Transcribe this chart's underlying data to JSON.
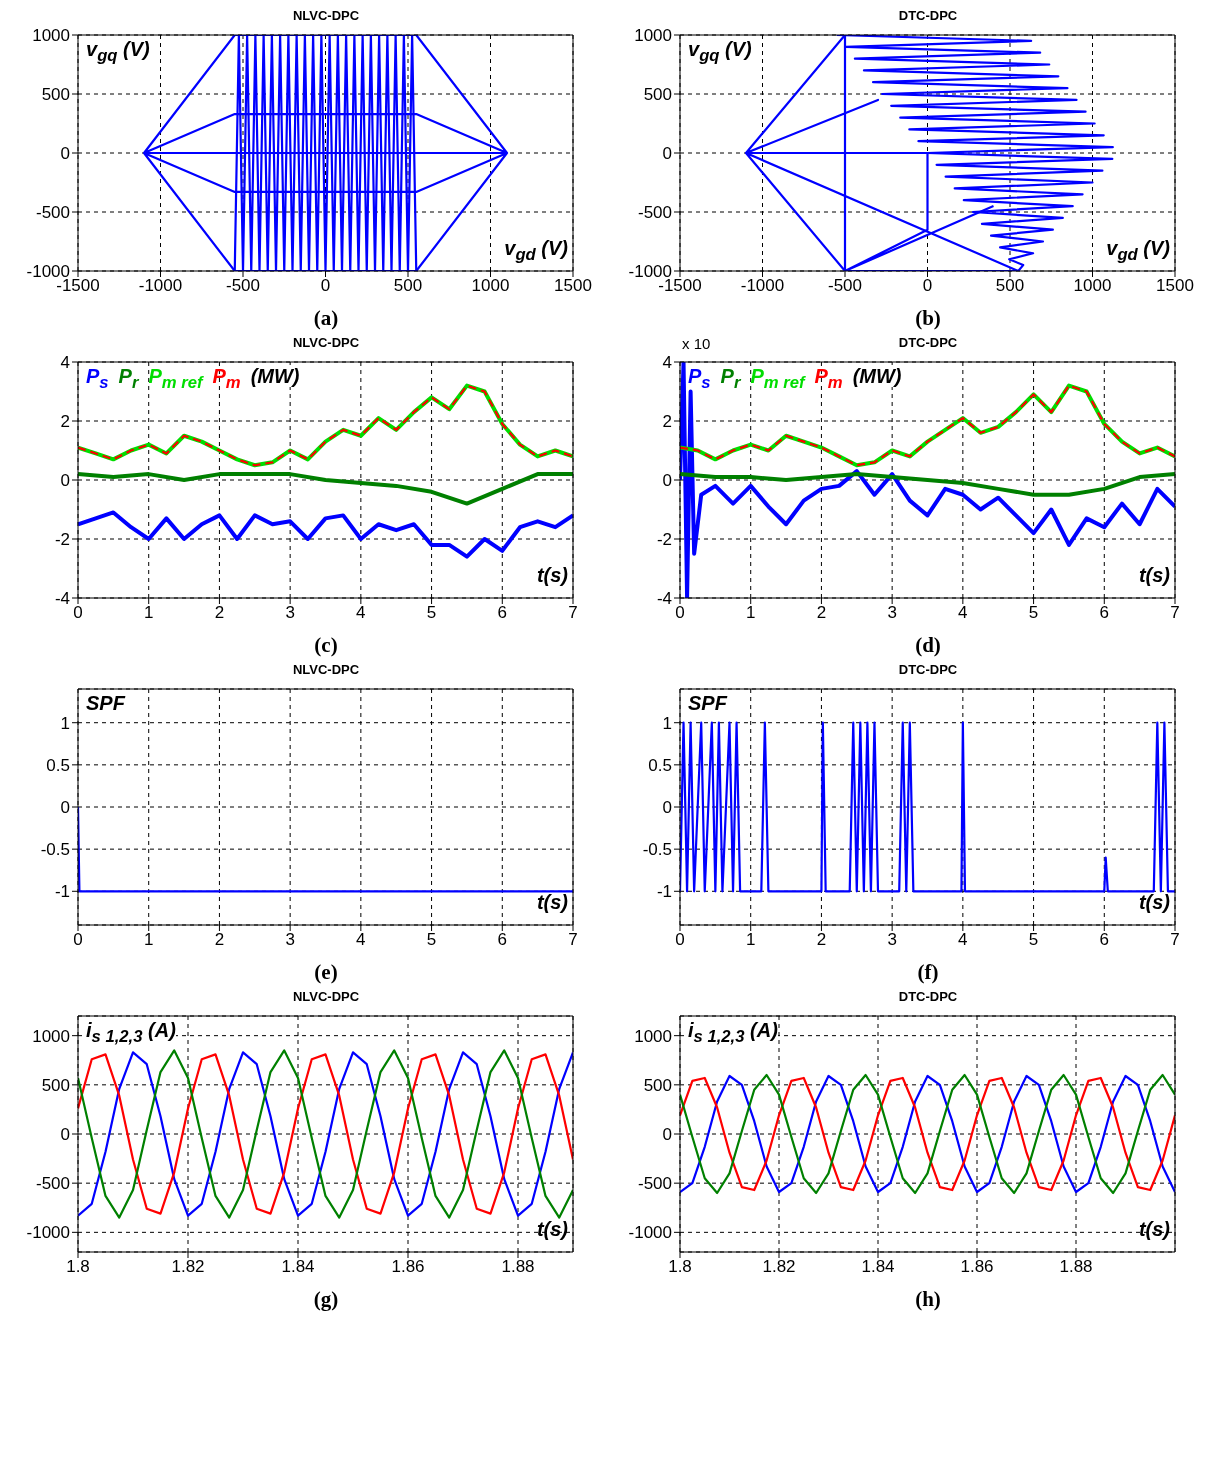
{
  "chart_data": [
    {
      "type": "line",
      "title": "NLVC-DPC",
      "xlabel": "v$_{gd}$ (V)",
      "ylabel": "v$_{gq}$ (V)",
      "annotations": [
        "(a)"
      ],
      "xlim": [
        -1500,
        1500
      ],
      "xticks": [
        -1500,
        -1000,
        -500,
        0,
        500,
        1000,
        1500
      ],
      "ylim": [
        -1000,
        1000
      ],
      "yticks": [
        -1000,
        -500,
        0,
        500,
        1000
      ],
      "grid": true,
      "marker": "none",
      "series": [
        {
          "color": "#0000ff",
          "x": [
            -1100,
            -550,
            550,
            1100,
            550,
            -550,
            -1100,
            -550,
            550,
            1100,
            550,
            -550,
            -1100,
            -550,
            550,
            1100
          ],
          "values": [
            0,
            1000,
            1000,
            0,
            -1000,
            -1000,
            0,
            330,
            330,
            0,
            -330,
            -330,
            0,
            0,
            0,
            0
          ]
        },
        {
          "color": "#0000ff",
          "x": [
            -550,
            -525,
            -500,
            -475,
            -450,
            -425,
            -400,
            -375,
            -350,
            -325,
            -300,
            -275,
            -250,
            -225,
            -200,
            -175,
            -150,
            -125,
            -100,
            -75,
            -50,
            -25,
            0,
            25,
            50,
            75,
            100,
            125,
            150,
            175,
            200,
            225,
            250,
            275,
            300,
            325,
            350,
            375,
            400,
            425,
            450,
            475,
            500,
            525,
            550
          ],
          "values": [
            -1000,
            1000,
            -1000,
            1000,
            -1000,
            1000,
            -1000,
            1000,
            -1000,
            1000,
            -1000,
            1000,
            -1000,
            1000,
            -1000,
            1000,
            -1000,
            1000,
            -1000,
            1000,
            -1000,
            1000,
            -1000,
            1000,
            -1000,
            1000,
            -1000,
            1000,
            -1000,
            1000,
            -1000,
            1000,
            -1000,
            1000,
            -1000,
            1000,
            -1000,
            1000,
            -1000,
            1000,
            -1000,
            1000,
            -1000,
            1000,
            -1000
          ]
        }
      ]
    },
    {
      "type": "line",
      "title": "DTC-DPC",
      "xlabel": "v$_{gd}$ (V)",
      "ylabel": "v$_{gq}$ (V)",
      "annotations": [
        "(b)"
      ],
      "xlim": [
        -1500,
        1500
      ],
      "xticks": [
        -1500,
        -1000,
        -500,
        0,
        500,
        1000,
        1500
      ],
      "ylim": [
        -1000,
        1000
      ],
      "yticks": [
        -1000,
        -500,
        0,
        500,
        1000
      ],
      "grid": true,
      "marker": "none",
      "series": [
        {
          "color": "#0000ff",
          "x": [
            -1100,
            -500,
            -500,
            -1100,
            0,
            0,
            -500,
            550,
            -1100,
            -300,
            -1100,
            -500,
            400
          ],
          "values": [
            0,
            1000,
            -1000,
            0,
            0,
            -650,
            -1000,
            -1000,
            0,
            450,
            0,
            -1000,
            -450
          ]
        },
        {
          "color": "#0000ff",
          "x": [
            -550,
            628,
            -495,
            683,
            -440,
            738,
            -385,
            793,
            -330,
            848,
            -275,
            903,
            -220,
            958,
            -165,
            1013,
            -110,
            1068,
            -55,
            1123,
            0,
            1120,
            55,
            1060,
            110,
            1000,
            165,
            940,
            220,
            880,
            275,
            820,
            330,
            760,
            385,
            700,
            440,
            640,
            495,
            580,
            550
          ],
          "values": [
            1000,
            950,
            900,
            850,
            800,
            750,
            700,
            650,
            600,
            550,
            500,
            450,
            400,
            350,
            300,
            250,
            200,
            150,
            100,
            50,
            0,
            -50,
            -100,
            -150,
            -200,
            -250,
            -300,
            -350,
            -400,
            -450,
            -500,
            -550,
            -600,
            -650,
            -700,
            -750,
            -800,
            -850,
            -900,
            -950,
            -1000
          ]
        }
      ]
    },
    {
      "type": "line",
      "title": "NLVC-DPC",
      "xlabel": "t(s)",
      "ylabel": "(MW)",
      "annotations": [
        "(c)"
      ],
      "xlim": [
        0,
        7
      ],
      "xticks": [
        0,
        1,
        2,
        3,
        4,
        5,
        6,
        7
      ],
      "ylim": [
        -4,
        4
      ],
      "yticks": [
        -4,
        -2,
        0,
        2,
        4
      ],
      "grid": true,
      "marker": "none",
      "x": [
        0,
        0.25,
        0.5,
        0.75,
        1,
        1.25,
        1.5,
        1.75,
        2,
        2.25,
        2.5,
        2.75,
        3,
        3.25,
        3.5,
        3.75,
        4,
        4.25,
        4.5,
        4.75,
        5,
        5.25,
        5.5,
        5.75,
        6,
        6.25,
        6.5,
        6.75,
        7
      ],
      "series": [
        {
          "name": "P$_{s}$",
          "color": "#0000ff",
          "values": [
            -1.5,
            -1.3,
            -1.1,
            -1.6,
            -2.0,
            -1.3,
            -2.0,
            -1.5,
            -1.2,
            -2.0,
            -1.2,
            -1.5,
            -1.4,
            -2.0,
            -1.3,
            -1.2,
            -2.0,
            -1.5,
            -1.7,
            -1.5,
            -2.2,
            -2.2,
            -2.6,
            -2.0,
            -2.4,
            -1.6,
            -1.4,
            -1.6,
            -1.2
          ]
        },
        {
          "name": "P$_{r}$",
          "color": "#008000",
          "x": [
            0,
            0.5,
            1,
            1.5,
            2,
            2.5,
            3,
            3.5,
            4,
            4.5,
            5,
            5.5,
            6,
            6.5,
            7
          ],
          "values": [
            0.2,
            0.1,
            0.2,
            0.0,
            0.2,
            0.2,
            0.2,
            0.0,
            -0.1,
            -0.2,
            -0.4,
            -0.8,
            -0.3,
            0.2,
            0.2
          ]
        },
        {
          "name": "P$_{m ref}$",
          "color": "#00dd00",
          "values": [
            1.1,
            0.9,
            0.7,
            1.0,
            1.2,
            0.9,
            1.5,
            1.3,
            1.0,
            0.7,
            0.5,
            0.6,
            1.0,
            0.7,
            1.3,
            1.7,
            1.5,
            2.1,
            1.7,
            2.3,
            2.8,
            2.4,
            3.2,
            3.0,
            1.9,
            1.2,
            0.8,
            1.0,
            0.8
          ]
        },
        {
          "name": "P$_{m}$",
          "color": "#ff0000",
          "line_style": "dashed",
          "values": [
            1.1,
            0.9,
            0.7,
            1.0,
            1.2,
            0.9,
            1.5,
            1.3,
            1.0,
            0.7,
            0.5,
            0.6,
            1.0,
            0.7,
            1.3,
            1.7,
            1.5,
            2.1,
            1.7,
            2.3,
            2.8,
            2.4,
            3.2,
            3.0,
            1.9,
            1.2,
            0.8,
            1.0,
            0.8
          ]
        }
      ]
    },
    {
      "type": "line",
      "title": "DTC-DPC",
      "xlabel": "t(s)",
      "ylabel": "(MW)",
      "annotations": [
        "x 10",
        "(d)"
      ],
      "xlim": [
        0,
        7
      ],
      "xticks": [
        0,
        1,
        2,
        3,
        4,
        5,
        6,
        7
      ],
      "ylim": [
        -4,
        4
      ],
      "yticks": [
        -4,
        -2,
        0,
        2,
        4
      ],
      "grid": true,
      "marker": "none",
      "x": [
        0,
        0.25,
        0.5,
        0.75,
        1,
        1.25,
        1.5,
        1.75,
        2,
        2.25,
        2.5,
        2.75,
        3,
        3.25,
        3.5,
        3.75,
        4,
        4.25,
        4.5,
        4.75,
        5,
        5.25,
        5.5,
        5.75,
        6,
        6.25,
        6.5,
        6.75,
        7
      ],
      "series": [
        {
          "name": "P$_{s}$",
          "color": "#0000ff",
          "x": [
            0,
            0.05,
            0.1,
            0.15,
            0.2,
            0.3,
            0.5,
            0.75,
            1,
            1.25,
            1.5,
            1.75,
            2,
            2.25,
            2.5,
            2.75,
            3,
            3.25,
            3.5,
            3.75,
            4,
            4.25,
            4.5,
            4.75,
            5,
            5.25,
            5.5,
            5.75,
            6,
            6.25,
            6.5,
            6.75,
            7
          ],
          "values": [
            0,
            4,
            -4,
            3,
            -2.5,
            -0.5,
            -0.2,
            -0.8,
            -0.2,
            -0.9,
            -1.5,
            -0.7,
            -0.3,
            -0.2,
            0.3,
            -0.5,
            0.2,
            -0.7,
            -1.2,
            -0.3,
            -0.5,
            -1.0,
            -0.6,
            -1.2,
            -1.8,
            -1.0,
            -2.2,
            -1.3,
            -1.6,
            -0.8,
            -1.5,
            -0.3,
            -0.9
          ]
        },
        {
          "name": "P$_{r}$",
          "color": "#008000",
          "x": [
            0,
            0.5,
            1,
            1.5,
            2,
            2.5,
            3,
            3.5,
            4,
            4.5,
            5,
            5.5,
            6,
            6.5,
            7
          ],
          "values": [
            0.2,
            0.1,
            0.1,
            0.0,
            0.1,
            0.2,
            0.1,
            0.0,
            -0.1,
            -0.3,
            -0.5,
            -0.5,
            -0.3,
            0.1,
            0.2
          ]
        },
        {
          "name": "P$_{m ref}$",
          "color": "#00dd00",
          "values": [
            1.1,
            1.0,
            0.7,
            1.0,
            1.2,
            1.0,
            1.5,
            1.3,
            1.1,
            0.8,
            0.5,
            0.6,
            1.0,
            0.8,
            1.3,
            1.7,
            2.1,
            1.6,
            1.8,
            2.3,
            2.9,
            2.3,
            3.2,
            3.0,
            1.9,
            1.3,
            0.9,
            1.1,
            0.8
          ]
        },
        {
          "name": "P$_{m}$",
          "color": "#ff0000",
          "line_style": "dashed",
          "values": [
            1.1,
            1.0,
            0.7,
            1.0,
            1.2,
            1.0,
            1.5,
            1.3,
            1.1,
            0.8,
            0.5,
            0.6,
            1.0,
            0.8,
            1.3,
            1.7,
            2.1,
            1.6,
            1.8,
            2.3,
            2.9,
            2.3,
            3.2,
            3.0,
            1.9,
            1.3,
            0.9,
            1.1,
            0.8
          ]
        }
      ]
    },
    {
      "type": "line",
      "title": "NLVC-DPC",
      "xlabel": "t(s)",
      "ylabel": "SPF",
      "annotations": [
        "(e)"
      ],
      "xlim": [
        0,
        7
      ],
      "xticks": [
        0,
        1,
        2,
        3,
        4,
        5,
        6,
        7
      ],
      "ylim": [
        -1.4,
        1.4
      ],
      "yticks": [
        -1,
        -0.5,
        0,
        0.5,
        1
      ],
      "grid": true,
      "marker": "none",
      "series": [
        {
          "color": "#0000ff",
          "x": [
            0,
            0.02,
            7
          ],
          "values": [
            0,
            -1,
            -1
          ]
        }
      ]
    },
    {
      "type": "line",
      "title": "DTC-DPC",
      "xlabel": "t(s)",
      "ylabel": "SPF",
      "annotations": [
        "(f)"
      ],
      "xlim": [
        0,
        7
      ],
      "xticks": [
        0,
        1,
        2,
        3,
        4,
        5,
        6,
        7
      ],
      "ylim": [
        -1.4,
        1.4
      ],
      "yticks": [
        -1,
        -0.5,
        0,
        0.5,
        1
      ],
      "grid": true,
      "marker": "none",
      "series": [
        {
          "color": "#0000ff",
          "x": [
            0,
            0.05,
            0.1,
            0.15,
            0.2,
            0.3,
            0.35,
            0.45,
            0.5,
            0.55,
            0.6,
            0.7,
            0.75,
            0.8,
            0.85,
            1.15,
            1.2,
            1.25,
            2.0,
            2.02,
            2.06,
            2.4,
            2.45,
            2.5,
            2.55,
            2.6,
            2.65,
            2.7,
            2.75,
            2.8,
            3.1,
            3.15,
            3.2,
            3.25,
            3.3,
            3.98,
            4.0,
            4.03,
            6.0,
            6.02,
            6.05,
            6.7,
            6.75,
            6.8,
            6.85,
            6.9,
            7
          ],
          "values": [
            -1,
            1,
            -1,
            1,
            -1,
            1,
            -1,
            1,
            -1,
            1,
            -1,
            1,
            -1,
            1,
            -1,
            -1,
            1,
            -1,
            -1,
            1,
            -1,
            -1,
            1,
            -1,
            1,
            -1,
            1,
            -1,
            1,
            -1,
            -1,
            1,
            -1,
            1,
            -1,
            -1,
            1,
            -1,
            -1,
            -0.6,
            -1,
            -1,
            1,
            -1,
            1,
            -1,
            -1
          ]
        }
      ]
    },
    {
      "type": "line",
      "title": "NLVC-DPC",
      "xlabel": "t(s)",
      "ylabel": "i$_{s 1,2,3}$ (A)",
      "annotations": [
        "(g)"
      ],
      "xlim": [
        1.8,
        1.89
      ],
      "xticks": [
        1.8,
        1.82,
        1.84,
        1.86,
        1.88
      ],
      "ylim": [
        -1200,
        1200
      ],
      "yticks": [
        -1000,
        -500,
        0,
        500,
        1000
      ],
      "grid": true,
      "marker": "none",
      "x": [
        1.8,
        1.8025,
        1.805,
        1.8075,
        1.81,
        1.8125,
        1.815,
        1.8175,
        1.82,
        1.8225,
        1.825,
        1.8275,
        1.83,
        1.8325,
        1.835,
        1.8375,
        1.84,
        1.8425,
        1.845,
        1.8475,
        1.85,
        1.8525,
        1.855,
        1.8575,
        1.86,
        1.8625,
        1.865,
        1.8675,
        1.87,
        1.8725,
        1.875,
        1.8775,
        1.88,
        1.8825,
        1.885,
        1.8875,
        1.89
      ],
      "series": [
        {
          "color": "#0000ff",
          "values": [
            -830,
            -710,
            -180,
            460,
            830,
            710,
            180,
            -460,
            -830,
            -710,
            -180,
            460,
            830,
            710,
            180,
            -460,
            -830,
            -710,
            -180,
            460,
            830,
            710,
            180,
            -460,
            -830,
            -710,
            -180,
            460,
            830,
            710,
            180,
            -460,
            -830,
            -710,
            -180,
            460,
            830
          ]
        },
        {
          "color": "#ff0000",
          "values": [
            260,
            760,
            810,
            390,
            -260,
            -760,
            -810,
            -390,
            260,
            760,
            810,
            390,
            -260,
            -760,
            -810,
            -390,
            260,
            760,
            810,
            390,
            -260,
            -760,
            -810,
            -390,
            260,
            760,
            810,
            390,
            -260,
            -760,
            -810,
            -390,
            260,
            760,
            810,
            390,
            -260
          ]
        },
        {
          "color": "#008000",
          "values": [
            570,
            -40,
            -630,
            -850,
            -570,
            40,
            630,
            850,
            570,
            -40,
            -630,
            -850,
            -570,
            40,
            630,
            850,
            570,
            -40,
            -630,
            -850,
            -570,
            40,
            630,
            850,
            570,
            -40,
            -630,
            -850,
            -570,
            40,
            630,
            850,
            570,
            -40,
            -630,
            -850,
            -570
          ]
        }
      ]
    },
    {
      "type": "line",
      "title": "DTC-DPC",
      "xlabel": "t(s)",
      "ylabel": "i$_{s 1,2,3}$ (A)",
      "annotations": [
        "(h)"
      ],
      "xlim": [
        1.8,
        1.9
      ],
      "xticks": [
        1.8,
        1.82,
        1.84,
        1.86,
        1.88
      ],
      "ylim": [
        -1200,
        1200
      ],
      "yticks": [
        -1000,
        -500,
        0,
        500,
        1000
      ],
      "grid": true,
      "marker": "none",
      "x": [
        1.8,
        1.8025,
        1.805,
        1.8075,
        1.81,
        1.8125,
        1.815,
        1.8175,
        1.82,
        1.8225,
        1.825,
        1.8275,
        1.83,
        1.8325,
        1.835,
        1.8375,
        1.84,
        1.8425,
        1.845,
        1.8475,
        1.85,
        1.8525,
        1.855,
        1.8575,
        1.86,
        1.8625,
        1.865,
        1.8675,
        1.87,
        1.8725,
        1.875,
        1.8775,
        1.88,
        1.8825,
        1.885,
        1.8875,
        1.89,
        1.8925,
        1.895,
        1.8975,
        1.9
      ],
      "series": [
        {
          "color": "#0000ff",
          "values": [
            -590,
            -500,
            -130,
            330,
            590,
            500,
            130,
            -330,
            -590,
            -500,
            -130,
            330,
            590,
            500,
            130,
            -330,
            -590,
            -500,
            -130,
            330,
            590,
            500,
            130,
            -330,
            -590,
            -500,
            -130,
            330,
            590,
            500,
            130,
            -330,
            -590,
            -500,
            -130,
            330,
            590,
            500,
            130,
            -330,
            -590
          ]
        },
        {
          "color": "#ff0000",
          "values": [
            190,
            540,
            570,
            270,
            -190,
            -540,
            -570,
            -270,
            190,
            540,
            570,
            270,
            -190,
            -540,
            -570,
            -270,
            190,
            540,
            570,
            270,
            -190,
            -540,
            -570,
            -270,
            190,
            540,
            570,
            270,
            -190,
            -540,
            -570,
            -270,
            190,
            540,
            570,
            270,
            -190,
            -540,
            -570,
            -270,
            190
          ]
        },
        {
          "color": "#008000",
          "values": [
            400,
            -30,
            -450,
            -600,
            -400,
            30,
            450,
            600,
            400,
            -30,
            -450,
            -600,
            -400,
            30,
            450,
            600,
            400,
            -30,
            -450,
            -600,
            -400,
            30,
            450,
            600,
            400,
            -30,
            -450,
            -600,
            -400,
            30,
            450,
            600,
            400,
            -30,
            -450,
            -600,
            -400,
            30,
            450,
            600,
            400
          ]
        }
      ]
    }
  ]
}
